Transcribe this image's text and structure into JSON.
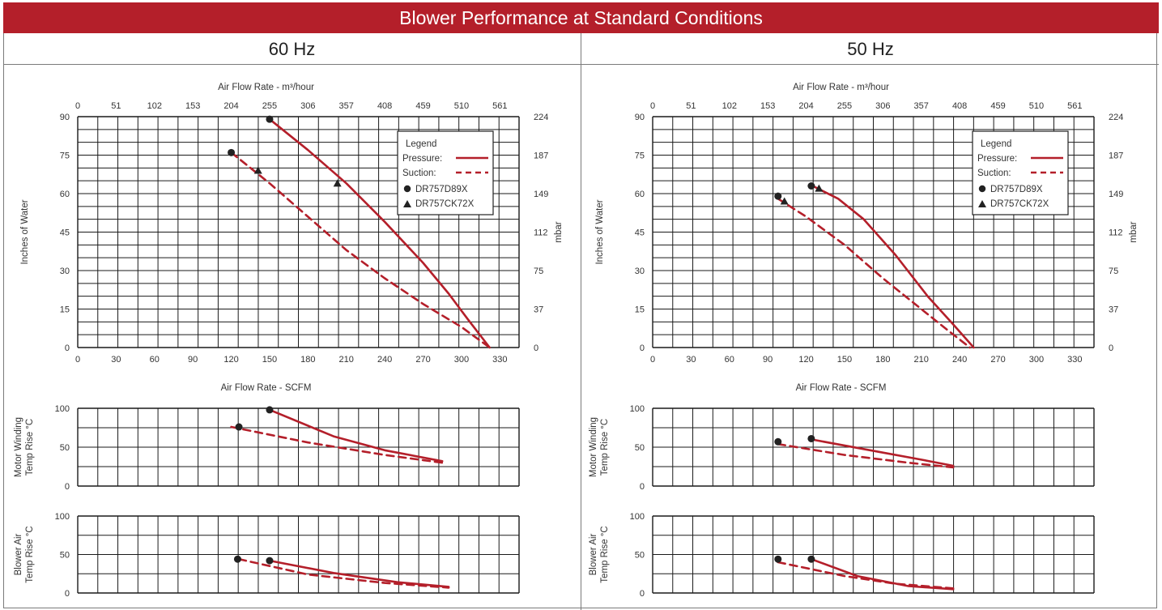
{
  "title": "Blower Performance at Standard Conditions",
  "colors": {
    "banner": "#b41f2a",
    "curve": "#b41f2a",
    "grid": "#1a1a1a",
    "text": "#333333"
  },
  "legend": {
    "title": "Legend",
    "pressure": "Pressure:",
    "suction": "Suction:",
    "model_circle": "DR757D89X",
    "model_triangle": "DR757CK72X",
    "icons": {
      "circle": "circle-marker-icon",
      "triangle": "triangle-marker-icon"
    }
  },
  "chart_data": [
    {
      "panel": "60 Hz",
      "charts": [
        {
          "type": "line",
          "top_axis_label": "Air Flow Rate - m³/hour",
          "top_ticks": [
            "0",
            "51",
            "102",
            "153",
            "204",
            "255",
            "306",
            "357",
            "408",
            "459",
            "510",
            "561"
          ],
          "xticks": [
            "0",
            "30",
            "60",
            "90",
            "120",
            "150",
            "180",
            "210",
            "240",
            "270",
            "300",
            "330"
          ],
          "xlim": [
            0,
            345
          ],
          "ylabel": "Inches of Water",
          "ylim": [
            0,
            90
          ],
          "yticks": [
            "0",
            "15",
            "30",
            "45",
            "60",
            "75",
            "90"
          ],
          "right_label": "mbar",
          "right_ticks": [
            "0",
            "37",
            "75",
            "112",
            "149",
            "187",
            "224"
          ],
          "legend_position": "top-right",
          "series": [
            {
              "name": "Pressure:",
              "style": "solid",
              "x": [
                150,
                180,
                210,
                240,
                270,
                290,
                305,
                322
              ],
              "y": [
                89,
                77,
                64,
                49,
                33,
                21,
                11,
                0
              ]
            },
            {
              "name": "Suction:",
              "style": "dashed",
              "x": [
                120,
                150,
                180,
                210,
                240,
                270,
                300,
                322
              ],
              "y": [
                76,
                64,
                51,
                38,
                27,
                17,
                8,
                0
              ]
            }
          ],
          "markers": [
            {
              "symbol": "circle",
              "x": 150,
              "y": 89
            },
            {
              "symbol": "circle",
              "x": 120,
              "y": 76
            },
            {
              "symbol": "triangle",
              "x": 141,
              "y": 69
            },
            {
              "symbol": "triangle",
              "x": 203,
              "y": 64
            }
          ]
        },
        {
          "type": "line",
          "xlabel": "Air Flow Rate - SCFM",
          "ylabel": "Motor Winding Temp Rise °C",
          "ylim": [
            0,
            100
          ],
          "yticks": [
            "0",
            "50",
            "100"
          ],
          "series": [
            {
              "style": "solid",
              "x": [
                150,
                200,
                240,
                285
              ],
              "y": [
                98,
                64,
                46,
                32
              ]
            },
            {
              "style": "dashed",
              "x": [
                120,
                180,
                240,
                285
              ],
              "y": [
                76,
                56,
                40,
                30
              ]
            }
          ],
          "markers": [
            {
              "symbol": "circle",
              "x": 150,
              "y": 98
            },
            {
              "symbol": "circle",
              "x": 126,
              "y": 76
            }
          ]
        },
        {
          "type": "line",
          "ylabel": "Blower Air Temp Rise °C",
          "ylim": [
            0,
            100
          ],
          "yticks": [
            "0",
            "50",
            "100"
          ],
          "series": [
            {
              "style": "solid",
              "x": [
                150,
                200,
                250,
                290
              ],
              "y": [
                42,
                26,
                14,
                8
              ]
            },
            {
              "style": "dashed",
              "x": [
                126,
                180,
                240,
                290
              ],
              "y": [
                44,
                24,
                13,
                7
              ]
            }
          ],
          "markers": [
            {
              "symbol": "circle",
              "x": 125,
              "y": 44
            },
            {
              "symbol": "circle",
              "x": 150,
              "y": 42
            }
          ]
        }
      ]
    },
    {
      "panel": "50 Hz",
      "charts": [
        {
          "type": "line",
          "top_axis_label": "Air Flow Rate - m³/hour",
          "top_ticks": [
            "0",
            "51",
            "102",
            "153",
            "204",
            "255",
            "306",
            "357",
            "408",
            "459",
            "510",
            "561"
          ],
          "xticks": [
            "0",
            "30",
            "60",
            "90",
            "120",
            "150",
            "180",
            "210",
            "240",
            "270",
            "300",
            "330"
          ],
          "xlim": [
            0,
            345
          ],
          "ylabel": "Inches of Water",
          "ylim": [
            0,
            90
          ],
          "yticks": [
            "0",
            "15",
            "30",
            "45",
            "60",
            "75",
            "90"
          ],
          "right_label": "mbar",
          "right_ticks": [
            "0",
            "37",
            "75",
            "112",
            "149",
            "187",
            "224"
          ],
          "legend_position": "top-right",
          "series": [
            {
              "name": "Pressure:",
              "style": "solid",
              "x": [
                125,
                145,
                165,
                190,
                215,
                235,
                251
              ],
              "y": [
                63,
                58,
                50,
                36,
                20,
                9,
                0
              ]
            },
            {
              "name": "Suction:",
              "style": "dashed",
              "x": [
                98,
                120,
                150,
                180,
                210,
                230,
                248
              ],
              "y": [
                58,
                51,
                40,
                27,
                15,
                7,
                0
              ]
            }
          ],
          "markers": [
            {
              "symbol": "circle",
              "x": 98,
              "y": 59
            },
            {
              "symbol": "circle",
              "x": 124,
              "y": 63
            },
            {
              "symbol": "triangle",
              "x": 103,
              "y": 57
            },
            {
              "symbol": "triangle",
              "x": 130,
              "y": 62
            }
          ]
        },
        {
          "type": "line",
          "xlabel": "Air Flow Rate - SCFM",
          "ylabel": "Motor Winding Temp Rise °C",
          "ylim": [
            0,
            100
          ],
          "yticks": [
            "0",
            "50",
            "100"
          ],
          "series": [
            {
              "style": "solid",
              "x": [
                124,
                170,
                210,
                235
              ],
              "y": [
                60,
                46,
                34,
                26
              ]
            },
            {
              "style": "dashed",
              "x": [
                98,
                150,
                200,
                235
              ],
              "y": [
                54,
                40,
                30,
                24
              ]
            }
          ],
          "markers": [
            {
              "symbol": "circle",
              "x": 98,
              "y": 57
            },
            {
              "symbol": "circle",
              "x": 124,
              "y": 61
            }
          ]
        },
        {
          "type": "line",
          "ylabel": "Blower Air Temp Rise °C",
          "ylim": [
            0,
            100
          ],
          "yticks": [
            "0",
            "50",
            "100"
          ],
          "series": [
            {
              "style": "solid",
              "x": [
                124,
                160,
                200,
                235
              ],
              "y": [
                44,
                22,
                9,
                5
              ]
            },
            {
              "style": "dashed",
              "x": [
                98,
                150,
                190,
                235
              ],
              "y": [
                40,
                22,
                12,
                6
              ]
            }
          ],
          "markers": [
            {
              "symbol": "circle",
              "x": 98,
              "y": 44
            },
            {
              "symbol": "circle",
              "x": 124,
              "y": 44
            }
          ]
        }
      ]
    }
  ]
}
